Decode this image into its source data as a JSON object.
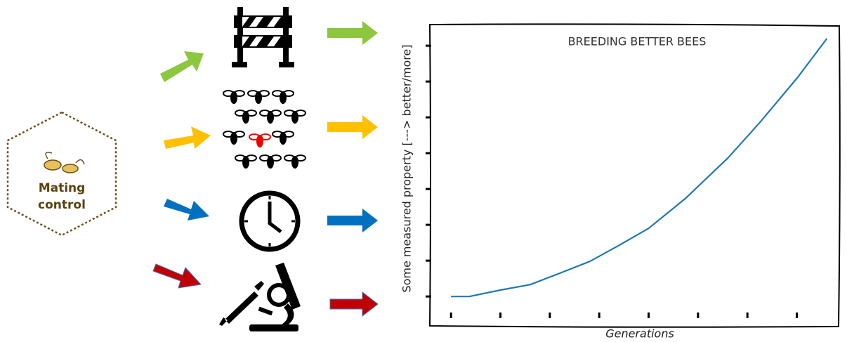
{
  "diagram": {
    "hub_label": [
      "Mating",
      "control"
    ]
  },
  "chart_data": {
    "type": "line",
    "title": "BREEDING BETTER BEES",
    "xlabel": "Generations",
    "ylabel": "Some measured property [---> better/more]",
    "x": [
      0,
      0.37,
      1,
      1.6,
      2.24,
      2.81,
      3.38,
      4,
      4.74,
      5.6,
      6.24,
      7.02,
      7.61
    ],
    "values": [
      0,
      0,
      0.18,
      0.33,
      0.67,
      0.98,
      1.41,
      1.9,
      2.73,
      3.86,
      4.84,
      6.12,
      7.2
    ],
    "color": "#1f77b4",
    "xlim": [
      -0.43,
      7.86
    ],
    "ylim": [
      -0.84,
      7.59
    ],
    "xticks": [
      0,
      1,
      2,
      3,
      4,
      5,
      6,
      7
    ],
    "yticks": [
      0,
      1,
      2,
      3,
      4,
      5,
      6,
      7
    ]
  }
}
